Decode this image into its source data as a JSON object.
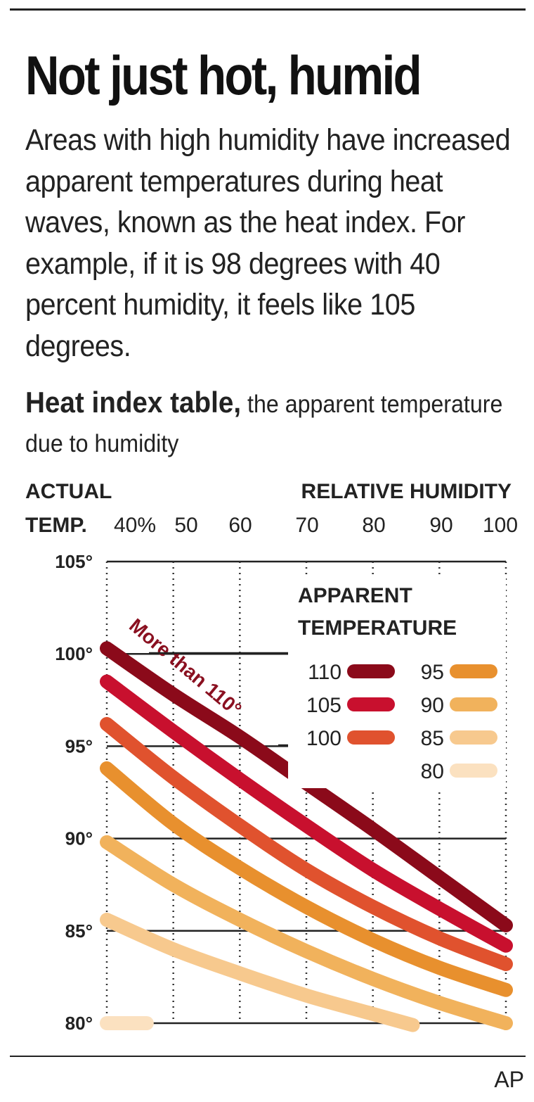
{
  "headline": "Not just hot, humid",
  "intro": "Areas with high humidity have increased apparent temperatures during heat waves, known as the heat index. For example, if it is 98 degrees with 40 percent humidity, it feels like 105 degrees.",
  "subhead": {
    "bold": "Heat index table,",
    "rest": " the apparent temperature due to humidity"
  },
  "credit": "AP",
  "colors": {
    "110": "#8b0a1a",
    "105": "#c8102e",
    "100": "#e0522e",
    "95": "#e8902e",
    "90": "#f1b25c",
    "85": "#f7c98e",
    "80": "#fbe1c0"
  },
  "chart_data": {
    "type": "line",
    "header_left": [
      "ACTUAL",
      "TEMP."
    ],
    "header_right": "RELATIVE HUMIDITY",
    "x_tick_labels": [
      "40%",
      "50",
      "60",
      "70",
      "80",
      "90",
      "100"
    ],
    "x": [
      40,
      50,
      60,
      70,
      80,
      90,
      100
    ],
    "y_tick_labels": [
      "105°",
      "100°",
      "95°",
      "90°",
      "85°",
      "80°"
    ],
    "y_ticks": [
      105,
      100,
      95,
      90,
      85,
      80
    ],
    "xlim": [
      40,
      100
    ],
    "ylim": [
      80,
      105
    ],
    "legend_title": [
      "APPARENT",
      "TEMPERATURE"
    ],
    "annotation": "More than 110°",
    "series": [
      {
        "name": "110",
        "x": [
          40,
          50,
          60,
          70,
          80,
          90,
          100
        ],
        "values": [
          100.3,
          97.8,
          95.5,
          93.0,
          90.5,
          87.9,
          85.3
        ]
      },
      {
        "name": "105",
        "x": [
          40,
          50,
          60,
          70,
          80,
          90,
          100
        ],
        "values": [
          98.5,
          95.8,
          93.2,
          90.7,
          88.3,
          86.2,
          84.2
        ]
      },
      {
        "name": "100",
        "x": [
          40,
          50,
          60,
          70,
          80,
          90,
          100
        ],
        "values": [
          96.2,
          93.3,
          90.7,
          88.3,
          86.3,
          84.6,
          83.2
        ]
      },
      {
        "name": "95",
        "x": [
          40,
          50,
          60,
          70,
          80,
          90,
          100
        ],
        "values": [
          93.8,
          90.8,
          88.4,
          86.3,
          84.5,
          83.0,
          81.8
        ]
      },
      {
        "name": "90",
        "x": [
          40,
          50,
          60,
          70,
          80,
          90,
          100
        ],
        "values": [
          89.8,
          87.5,
          85.6,
          83.9,
          82.4,
          81.1,
          80.0
        ]
      },
      {
        "name": "85",
        "x": [
          40,
          50,
          60,
          70,
          80,
          86
        ],
        "values": [
          85.6,
          84.0,
          82.7,
          81.5,
          80.5,
          79.9
        ]
      },
      {
        "name": "80",
        "x": [
          40,
          46
        ],
        "values": [
          80.0,
          80.0
        ]
      }
    ]
  }
}
